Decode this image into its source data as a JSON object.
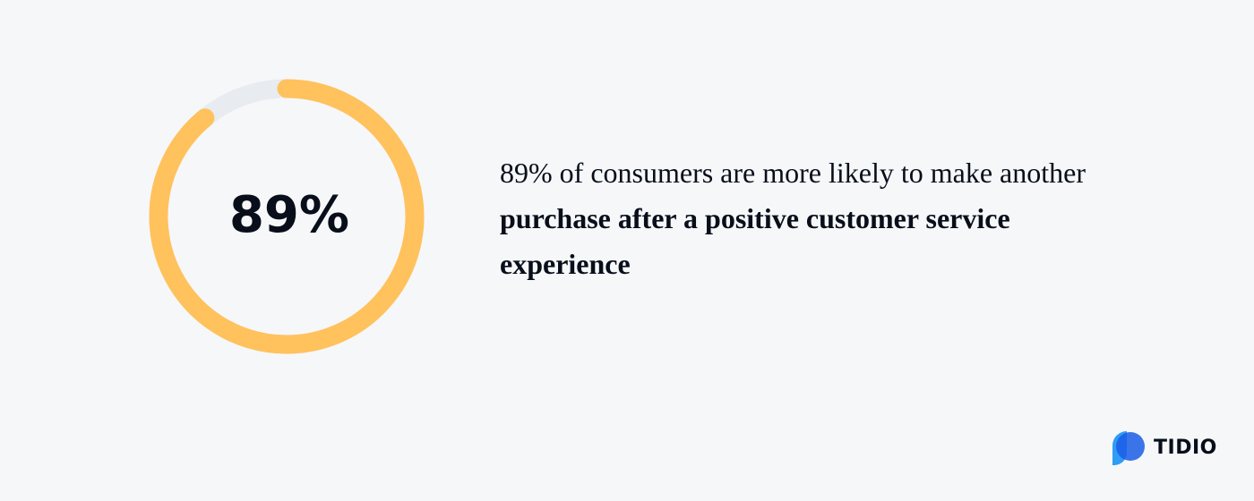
{
  "chart_data": {
    "type": "progress_ring",
    "values": [
      89
    ],
    "value_labels": [
      "89%"
    ],
    "ylim": [
      0,
      100
    ],
    "color": "#ffc25c",
    "track_color": "#e8ebef",
    "caption": {
      "text": "89% of consumers are more likely to make another",
      "bold": "purchase after a positive customer service experience"
    }
  },
  "logo": "TIDIO"
}
